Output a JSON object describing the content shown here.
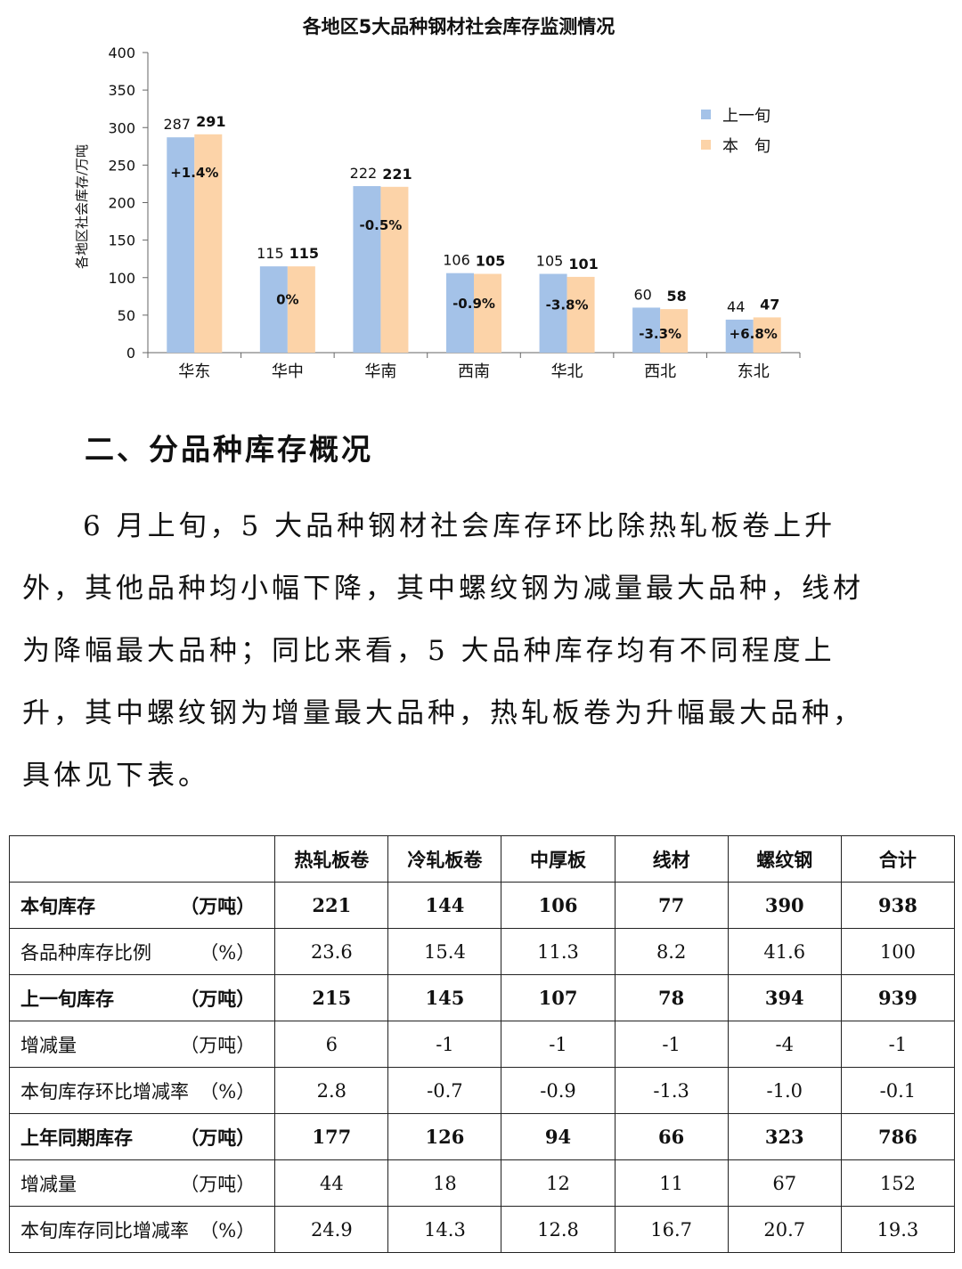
{
  "chart_data": {
    "type": "bar",
    "title": "各地区5大品种钢材社会库存监测情况",
    "ylabel": "各地区社会库存/万吨",
    "ylim": [
      0,
      400
    ],
    "yticks": [
      0,
      50,
      100,
      150,
      200,
      250,
      300,
      350,
      400
    ],
    "categories": [
      "华东",
      "华中",
      "华南",
      "西南",
      "华北",
      "西北",
      "东北"
    ],
    "series": [
      {
        "name": "上一旬",
        "color": "#a4c2e8",
        "values": [
          287,
          115,
          222,
          106,
          105,
          60,
          44
        ]
      },
      {
        "name": "本　旬",
        "color": "#fcd3a8",
        "values": [
          291,
          115,
          221,
          105,
          101,
          58,
          47
        ]
      }
    ],
    "changes": [
      "+1.4%",
      "0%",
      "-0.5%",
      "-0.9%",
      "-3.8%",
      "-3.3%",
      "+6.8%"
    ],
    "legend": "right"
  },
  "section_heading": "二、分品种库存概况",
  "paragraph": "6 月上旬，5 大品种钢材社会库存环比除热轧板卷上升外，其他品种均小幅下降，其中螺纹钢为减量最大品种，线材为降幅最大品种；同比来看，5 大品种库存均有不同程度上升，其中螺纹钢为增量最大品种，热轧板卷为升幅最大品种，具体见下表。",
  "table": {
    "headers": [
      "",
      "热轧板卷",
      "冷轧板卷",
      "中厚板",
      "线材",
      "螺纹钢",
      "合计"
    ],
    "rows": [
      {
        "label": "本旬库存",
        "unit": "（万吨）",
        "bold": true,
        "values": [
          "221",
          "144",
          "106",
          "77",
          "390",
          "938"
        ]
      },
      {
        "label": "各品种库存比例",
        "unit": "（%）",
        "bold": false,
        "values": [
          "23.6",
          "15.4",
          "11.3",
          "8.2",
          "41.6",
          "100"
        ]
      },
      {
        "label": "上一旬库存",
        "unit": "（万吨）",
        "bold": true,
        "values": [
          "215",
          "145",
          "107",
          "78",
          "394",
          "939"
        ]
      },
      {
        "label": "增减量",
        "unit": "（万吨）",
        "bold": false,
        "values": [
          "6",
          "-1",
          "-1",
          "-1",
          "-4",
          "-1"
        ]
      },
      {
        "label": "本旬库存环比增减率",
        "unit": "（%）",
        "bold": false,
        "values": [
          "2.8",
          "-0.7",
          "-0.9",
          "-1.3",
          "-1.0",
          "-0.1"
        ]
      },
      {
        "label": "上年同期库存",
        "unit": "（万吨）",
        "bold": true,
        "values": [
          "177",
          "126",
          "94",
          "66",
          "323",
          "786"
        ]
      },
      {
        "label": "增减量",
        "unit": "（万吨）",
        "bold": false,
        "values": [
          "44",
          "18",
          "12",
          "11",
          "67",
          "152"
        ]
      },
      {
        "label": "本旬库存同比增减率",
        "unit": "（%）",
        "bold": false,
        "values": [
          "24.9",
          "14.3",
          "12.8",
          "16.7",
          "20.7",
          "19.3"
        ]
      }
    ]
  }
}
